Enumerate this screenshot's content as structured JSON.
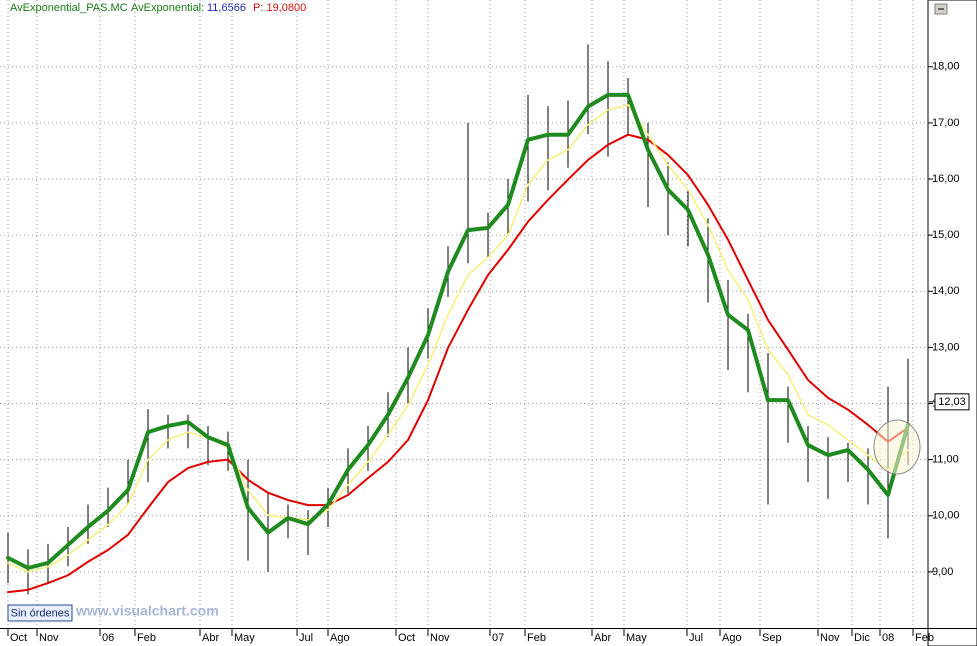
{
  "chart_data": {
    "type": "line",
    "header": {
      "symbol": "AvExponential_PAS.MC",
      "indicator": "AvExponential:",
      "value": "11,6566",
      "price": "P: 19,0800"
    },
    "footer": {
      "orders": "Sin órdenes",
      "watermark": "www.visualchart.com"
    },
    "last_price": {
      "value": 12.03,
      "label": "12,03"
    },
    "grid": true,
    "x": [
      0,
      1,
      2,
      3,
      4,
      5,
      6,
      7,
      8,
      9,
      10,
      11,
      12,
      13,
      14,
      15,
      16,
      17,
      18,
      19,
      20,
      21,
      22,
      23,
      24,
      25,
      26,
      27,
      28,
      29,
      30,
      31,
      32,
      33,
      34,
      35,
      36,
      37,
      38,
      39,
      40,
      41,
      42,
      43,
      44,
      45
    ],
    "xlim": [
      -0.4,
      46
    ],
    "xticks": [
      {
        "value": 0,
        "label": "Oct"
      },
      {
        "value": 1.45,
        "label": "Nov"
      },
      {
        "value": 4.6,
        "label": "06"
      },
      {
        "value": 6.35,
        "label": "Feb"
      },
      {
        "value": 9.6,
        "label": "Abr"
      },
      {
        "value": 11.2,
        "label": "May"
      },
      {
        "value": 14.45,
        "label": "Jul"
      },
      {
        "value": 16,
        "label": "Ago"
      },
      {
        "value": 19.4,
        "label": "Oct"
      },
      {
        "value": 21,
        "label": "Nov"
      },
      {
        "value": 24.1,
        "label": "07"
      },
      {
        "value": 25.85,
        "label": "Feb"
      },
      {
        "value": 29.2,
        "label": "Abr"
      },
      {
        "value": 30.8,
        "label": "May"
      },
      {
        "value": 33.95,
        "label": "Jul"
      },
      {
        "value": 35.6,
        "label": "Ago"
      },
      {
        "value": 37.6,
        "label": "Sep"
      },
      {
        "value": 40.5,
        "label": "Nov"
      },
      {
        "value": 42.2,
        "label": "Dic"
      },
      {
        "value": 43.6,
        "label": "08"
      },
      {
        "value": 45.25,
        "label": "Feb"
      }
    ],
    "ylim": [
      8.0,
      19.19
    ],
    "yticks": [
      {
        "value": 9,
        "label": "9,00"
      },
      {
        "value": 10,
        "label": "10,00"
      },
      {
        "value": 11,
        "label": "11,00"
      },
      {
        "value": 12,
        "label": "12,00"
      },
      {
        "value": 13,
        "label": "13,00"
      },
      {
        "value": 14,
        "label": "14,00"
      },
      {
        "value": 15,
        "label": "15,00"
      },
      {
        "value": 16,
        "label": "16,00"
      },
      {
        "value": 17,
        "label": "17,00"
      },
      {
        "value": 18,
        "label": "18,00"
      }
    ],
    "bars": {
      "color": "#000000",
      "high": [
        9.7,
        9.4,
        9.5,
        9.8,
        10.2,
        10.5,
        11.0,
        11.9,
        11.8,
        11.8,
        11.6,
        11.5,
        11.0,
        10.4,
        10.2,
        10.1,
        10.5,
        11.2,
        11.6,
        12.2,
        13.0,
        13.7,
        14.8,
        17.0,
        15.4,
        16.0,
        17.5,
        17.3,
        17.4,
        18.4,
        18.1,
        17.8,
        17.0,
        16.3,
        15.8,
        15.3,
        14.2,
        13.6,
        12.9,
        12.3,
        11.6,
        11.4,
        11.3,
        11.2,
        12.3,
        12.8
      ],
      "low": [
        8.8,
        8.6,
        8.8,
        9.1,
        9.5,
        9.8,
        10.2,
        10.6,
        11.2,
        11.2,
        10.9,
        10.8,
        9.2,
        9.0,
        9.6,
        9.3,
        9.8,
        10.4,
        10.8,
        11.4,
        12.0,
        12.8,
        13.9,
        14.5,
        14.6,
        15.0,
        15.6,
        15.8,
        16.2,
        16.8,
        16.4,
        16.8,
        15.5,
        15.0,
        14.8,
        13.8,
        12.6,
        12.2,
        10.2,
        11.3,
        10.6,
        10.3,
        10.6,
        10.2,
        9.6,
        10.9
      ]
    },
    "series": [
      {
        "color": "#e00000",
        "width": 2,
        "values": [
          8.64,
          8.68,
          8.8,
          8.94,
          9.18,
          9.39,
          9.66,
          10.14,
          10.6,
          10.85,
          10.96,
          11.0,
          10.64,
          10.41,
          10.28,
          10.19,
          10.19,
          10.37,
          10.67,
          10.96,
          11.35,
          12.06,
          12.99,
          13.67,
          14.29,
          14.74,
          15.24,
          15.63,
          15.99,
          16.34,
          16.61,
          16.79,
          16.7,
          16.43,
          16.07,
          15.54,
          14.92,
          14.2,
          13.49,
          12.96,
          12.42,
          12.1,
          11.89,
          11.62,
          11.32,
          11.57
        ]
      },
      {
        "color": "#f4f07a",
        "width": 1.5,
        "values": [
          9.16,
          9.0,
          9.09,
          9.3,
          9.57,
          9.84,
          10.2,
          11.0,
          11.35,
          11.49,
          11.39,
          11.21,
          10.46,
          10.01,
          9.96,
          9.93,
          10.1,
          10.55,
          10.96,
          11.44,
          11.97,
          12.69,
          13.58,
          14.29,
          14.6,
          15.0,
          15.9,
          16.34,
          16.52,
          16.97,
          17.23,
          17.32,
          16.79,
          16.25,
          15.81,
          15.18,
          14.38,
          13.85,
          12.96,
          12.51,
          11.8,
          11.62,
          11.35,
          11.08,
          10.82,
          11.17
        ]
      },
      {
        "color": "#1f8a1f",
        "width": 4,
        "values": [
          9.25,
          9.07,
          9.16,
          9.48,
          9.8,
          10.09,
          10.46,
          11.49,
          11.6,
          11.67,
          11.4,
          11.26,
          10.14,
          9.7,
          9.96,
          9.85,
          10.2,
          10.82,
          11.26,
          11.8,
          12.46,
          13.22,
          14.35,
          15.09,
          15.13,
          15.54,
          16.7,
          16.79,
          16.79,
          17.29,
          17.5,
          17.5,
          16.52,
          15.81,
          15.45,
          14.65,
          13.58,
          13.31,
          12.06,
          12.06,
          11.26,
          11.08,
          11.17,
          10.82,
          10.37,
          11.62
        ]
      }
    ]
  }
}
